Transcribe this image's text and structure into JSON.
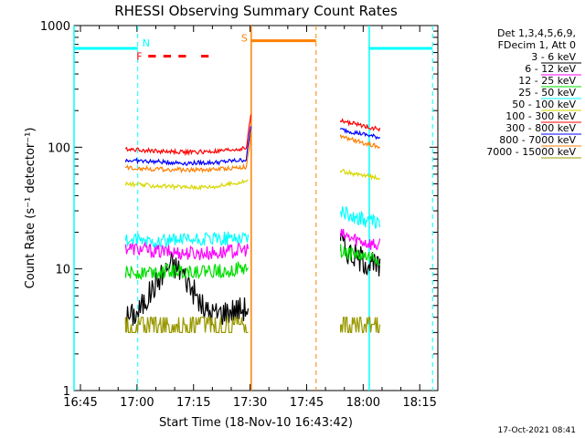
{
  "chart_data": {
    "type": "line",
    "title": "RHESSI Observing Summary Count Rates",
    "xlabel": "Start Time (18-Nov-10 16:43:42)",
    "ylabel": "Count Rate (s⁻¹ detector⁻¹)",
    "y_scale": "log",
    "ylim": [
      1,
      1000
    ],
    "xlim_minutes": [
      -1.7,
      94.8
    ],
    "x_ticks": [
      {
        "label": "16:45",
        "minutes": 0
      },
      {
        "label": "17:00",
        "minutes": 15
      },
      {
        "label": "17:15",
        "minutes": 30
      },
      {
        "label": "17:30",
        "minutes": 45
      },
      {
        "label": "17:45",
        "minutes": 60
      },
      {
        "label": "18:00",
        "minutes": 75
      },
      {
        "label": "18:15",
        "minutes": 90
      }
    ],
    "y_ticks": [
      {
        "label": "1",
        "value": 1
      },
      {
        "label": "10",
        "value": 10
      },
      {
        "label": "100",
        "value": 100
      },
      {
        "label": "1000",
        "value": 1000
      }
    ],
    "legend_header": [
      "Det 1,3,4,5,6,9,",
      "FDecim 1, Att 0"
    ],
    "series": [
      {
        "name": "3 - 6 keV",
        "color": "#000000",
        "segments": [
          [
            [
              12,
              4.0
            ],
            [
              15,
              4.3
            ],
            [
              18,
              6.0
            ],
            [
              21,
              8.5
            ],
            [
              24,
              11.0
            ],
            [
              27,
              9.5
            ],
            [
              30,
              6.5
            ],
            [
              33,
              4.5
            ],
            [
              36,
              4.3
            ],
            [
              40,
              4.6
            ],
            [
              44.5,
              4.8
            ]
          ],
          [
            [
              69,
              17.0
            ],
            [
              71,
              14.0
            ],
            [
              73,
              12.5
            ],
            [
              75,
              12.0
            ],
            [
              77,
              11.0
            ],
            [
              79.5,
              10.0
            ]
          ]
        ]
      },
      {
        "name": "6 - 12 keV",
        "color": "#ff00ff",
        "segments": [
          [
            [
              12,
              15.0
            ],
            [
              20,
              14.0
            ],
            [
              28,
              13.5
            ],
            [
              36,
              13.5
            ],
            [
              44.5,
              14.5
            ]
          ],
          [
            [
              69,
              19.0
            ],
            [
              73,
              17.5
            ],
            [
              76,
              16.5
            ],
            [
              79.5,
              15.5
            ]
          ]
        ]
      },
      {
        "name": "12 - 25 keV",
        "color": "#00dd00",
        "segments": [
          [
            [
              12,
              9.2
            ],
            [
              20,
              9.6
            ],
            [
              28,
              9.6
            ],
            [
              36,
              9.6
            ],
            [
              44.5,
              10.0
            ]
          ],
          [
            [
              69,
              14.0
            ],
            [
              73,
              13.0
            ],
            [
              76,
              12.5
            ],
            [
              79.5,
              12.0
            ]
          ]
        ]
      },
      {
        "name": "25 - 50 keV",
        "color": "#00ffff",
        "segments": [
          [
            [
              12,
              17.0
            ],
            [
              20,
              17.0
            ],
            [
              28,
              17.0
            ],
            [
              36,
              17.5
            ],
            [
              44.5,
              18.5
            ]
          ],
          [
            [
              69,
              29.0
            ],
            [
              73,
              26.5
            ],
            [
              76,
              25.0
            ],
            [
              79.5,
              24.0
            ]
          ]
        ]
      },
      {
        "name": "50 - 100 keV",
        "color": "#d7d700",
        "segments": [
          [
            [
              12,
              50
            ],
            [
              20,
              48
            ],
            [
              28,
              47
            ],
            [
              36,
              47.5
            ],
            [
              44.5,
              53
            ]
          ],
          [
            [
              69,
              64
            ],
            [
              73,
              60
            ],
            [
              76,
              58
            ],
            [
              79.5,
              56
            ]
          ]
        ]
      },
      {
        "name": "100 - 300 keV",
        "color": "#ff0000",
        "segments": [
          [
            [
              12,
              97
            ],
            [
              20,
              93
            ],
            [
              28,
              91
            ],
            [
              36,
              92
            ],
            [
              44,
              98
            ],
            [
              45.3,
              195
            ]
          ],
          [
            [
              69,
              165
            ],
            [
              73,
              155
            ],
            [
              76,
              148
            ],
            [
              79.5,
              140
            ]
          ]
        ]
      },
      {
        "name": "300 - 800 keV",
        "color": "#0000ff",
        "segments": [
          [
            [
              12,
              78
            ],
            [
              20,
              76
            ],
            [
              28,
              74
            ],
            [
              36,
              75
            ],
            [
              44,
              79
            ],
            [
              45.3,
              160
            ]
          ],
          [
            [
              69,
              140
            ],
            [
              73,
              132
            ],
            [
              76,
              126
            ],
            [
              79.5,
              120
            ]
          ]
        ]
      },
      {
        "name": "800 - 7000 keV",
        "color": "#ff8000",
        "segments": [
          [
            [
              12,
              68
            ],
            [
              20,
              66
            ],
            [
              28,
              65
            ],
            [
              36,
              66
            ],
            [
              44,
              69
            ],
            [
              45.3,
              130
            ]
          ],
          [
            [
              69,
              122
            ],
            [
              73,
              113
            ],
            [
              76,
              107
            ],
            [
              79.5,
              100
            ]
          ]
        ]
      },
      {
        "name": "7000 - 15000 keV",
        "color": "#999900",
        "segments": [
          [
            [
              12,
              3.0
            ],
            [
              20,
              3.0
            ],
            [
              28,
              3.0
            ],
            [
              36,
              3.0
            ],
            [
              44.5,
              3.2
            ]
          ],
          [
            [
              69,
              3.5
            ],
            [
              79.5,
              3.5
            ]
          ]
        ]
      }
    ],
    "annotations": {
      "saa": {
        "label": "S",
        "color": "#ff8000",
        "x_range": [
          45.3,
          62.5
        ],
        "level": 750
      },
      "night": {
        "label": "N",
        "color": "#00ffff",
        "x_range": [
          -1.7,
          15.2
        ],
        "level": 650
      },
      "night2": {
        "color": "#00ffff",
        "x_range": [
          76.6,
          93.4
        ],
        "level": 650
      },
      "flare": {
        "label": "F",
        "color": "#ff0000",
        "segments": [
          [
            18,
            20
          ],
          [
            22,
            24
          ],
          [
            26,
            28
          ],
          [
            32,
            34
          ]
        ],
        "level": 560
      },
      "cyan_solid_lines": [
        -1.7,
        76.6
      ],
      "cyan_dashed_lines": [
        15.2,
        93.4
      ],
      "orange_solid_lines": [
        45.3
      ],
      "orange_dashed_lines": [
        62.5
      ]
    }
  },
  "footer": {
    "date": "17-Oct-2021 08:41"
  }
}
